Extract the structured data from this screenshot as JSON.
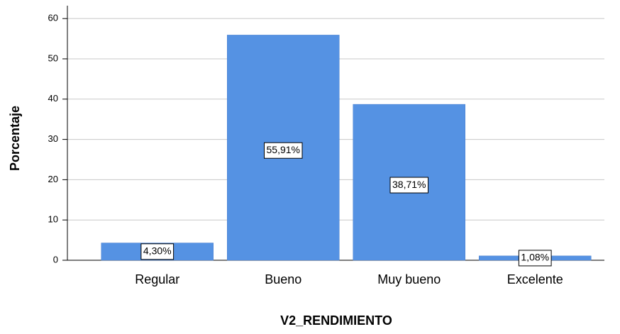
{
  "chart_data": {
    "type": "bar",
    "x_label": "V2_RENDIMIENTO",
    "y_label": "Porcentaje",
    "categories": [
      "Regular",
      "Bueno",
      "Muy bueno",
      "Excelente"
    ],
    "values": [
      4.3,
      55.91,
      38.71,
      1.08
    ],
    "value_labels": [
      "4,30%",
      "55,91%",
      "38,71%",
      "1,08%"
    ],
    "color": "#5592e3",
    "ylim": [
      0,
      63.2
    ],
    "yticks": [
      0,
      10,
      20,
      30,
      40,
      50,
      60
    ],
    "grid": true
  }
}
